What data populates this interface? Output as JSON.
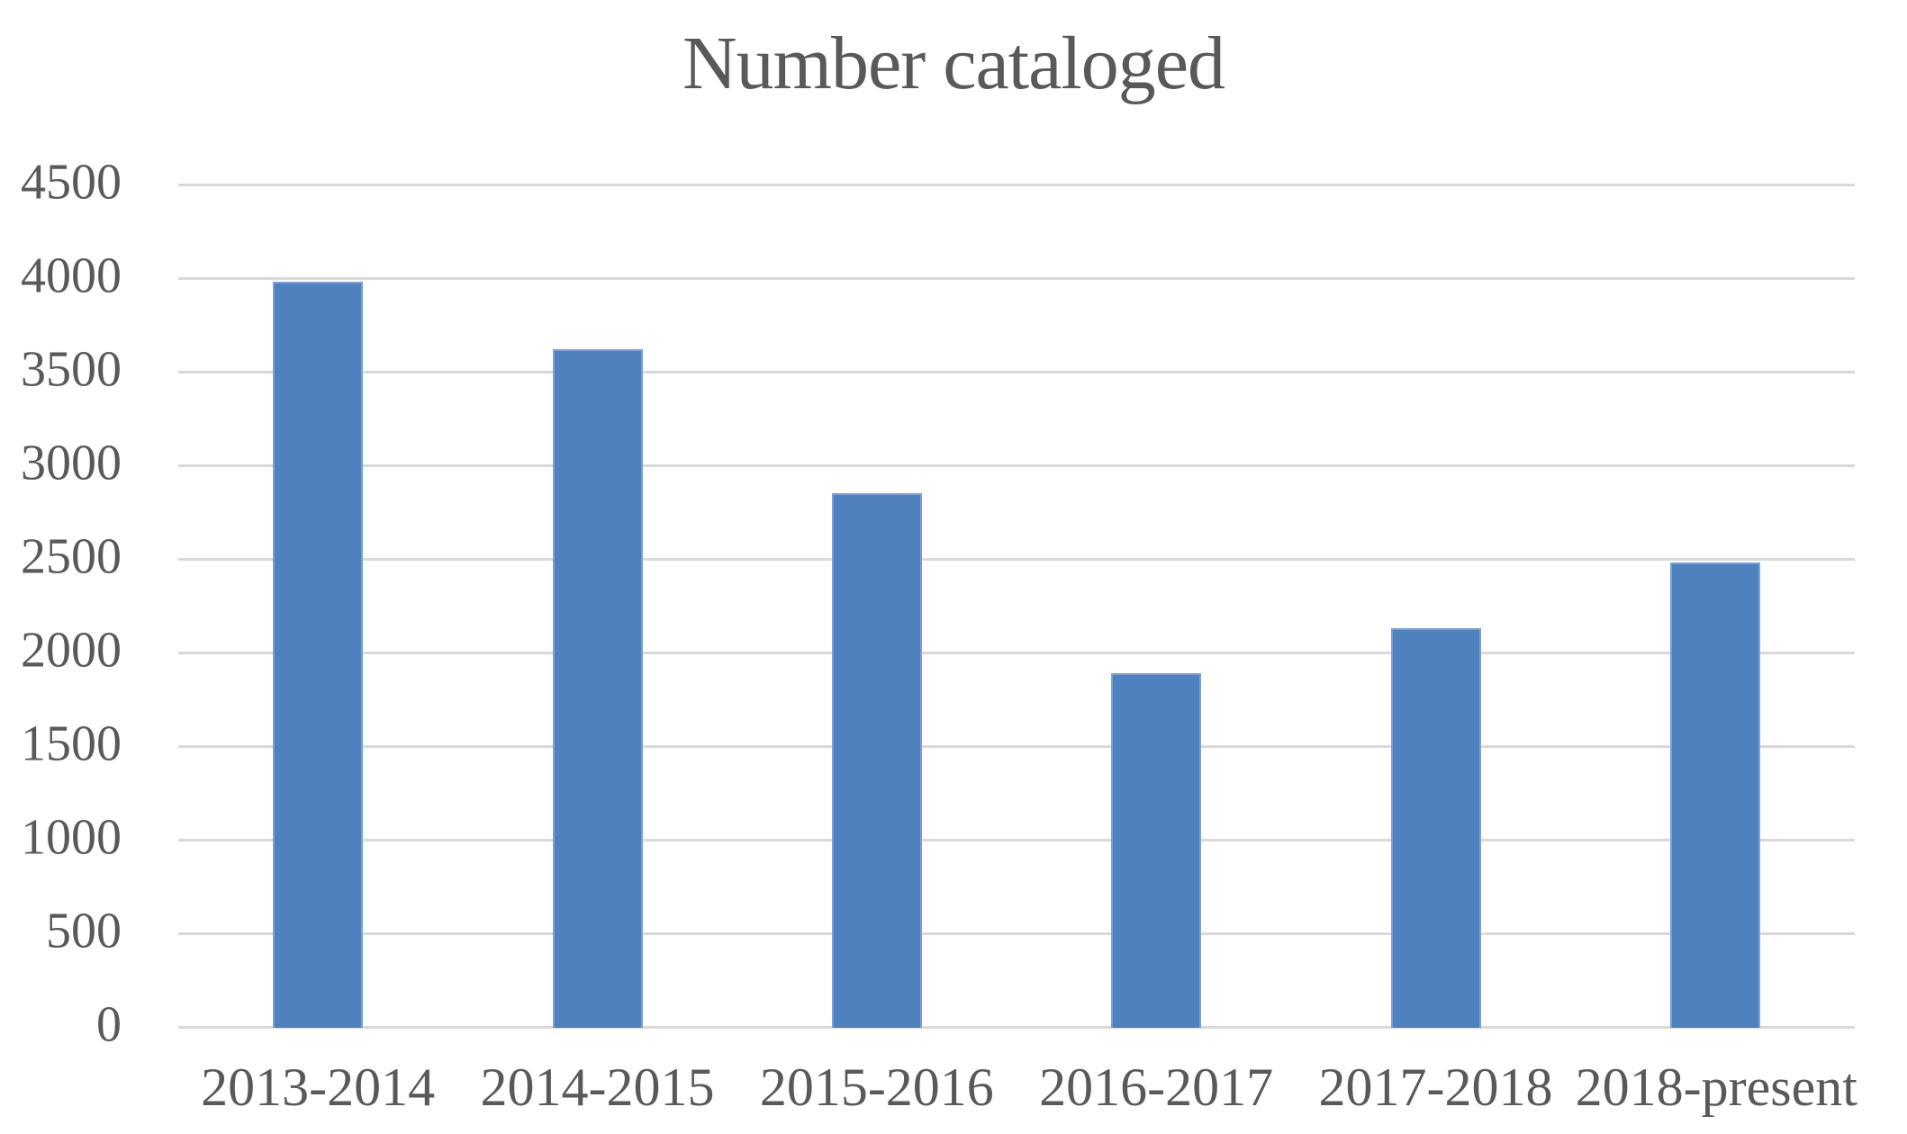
{
  "chart_data": {
    "type": "bar",
    "title": "Number cataloged",
    "categories": [
      "2013-2014",
      "2014-2015",
      "2015-2016",
      "2016-2017",
      "2017-2018",
      "2018-present"
    ],
    "values": [
      3980,
      3620,
      2850,
      1890,
      2130,
      2480
    ],
    "xlabel": "",
    "ylabel": "",
    "ylim": [
      0,
      4500
    ],
    "ytick_step": 500,
    "ytick_labels": [
      "0",
      "500",
      "1000",
      "1500",
      "2000",
      "2500",
      "3000",
      "3500",
      "4000",
      "4500"
    ],
    "grid": "horizontal-only",
    "legend": "none",
    "colors": {
      "bar_fill": "#4E81BE",
      "bar_border": "#7CA0D3",
      "gridline": "#D9D9D9",
      "text": "#595959",
      "background": "#FFFFFF"
    }
  }
}
